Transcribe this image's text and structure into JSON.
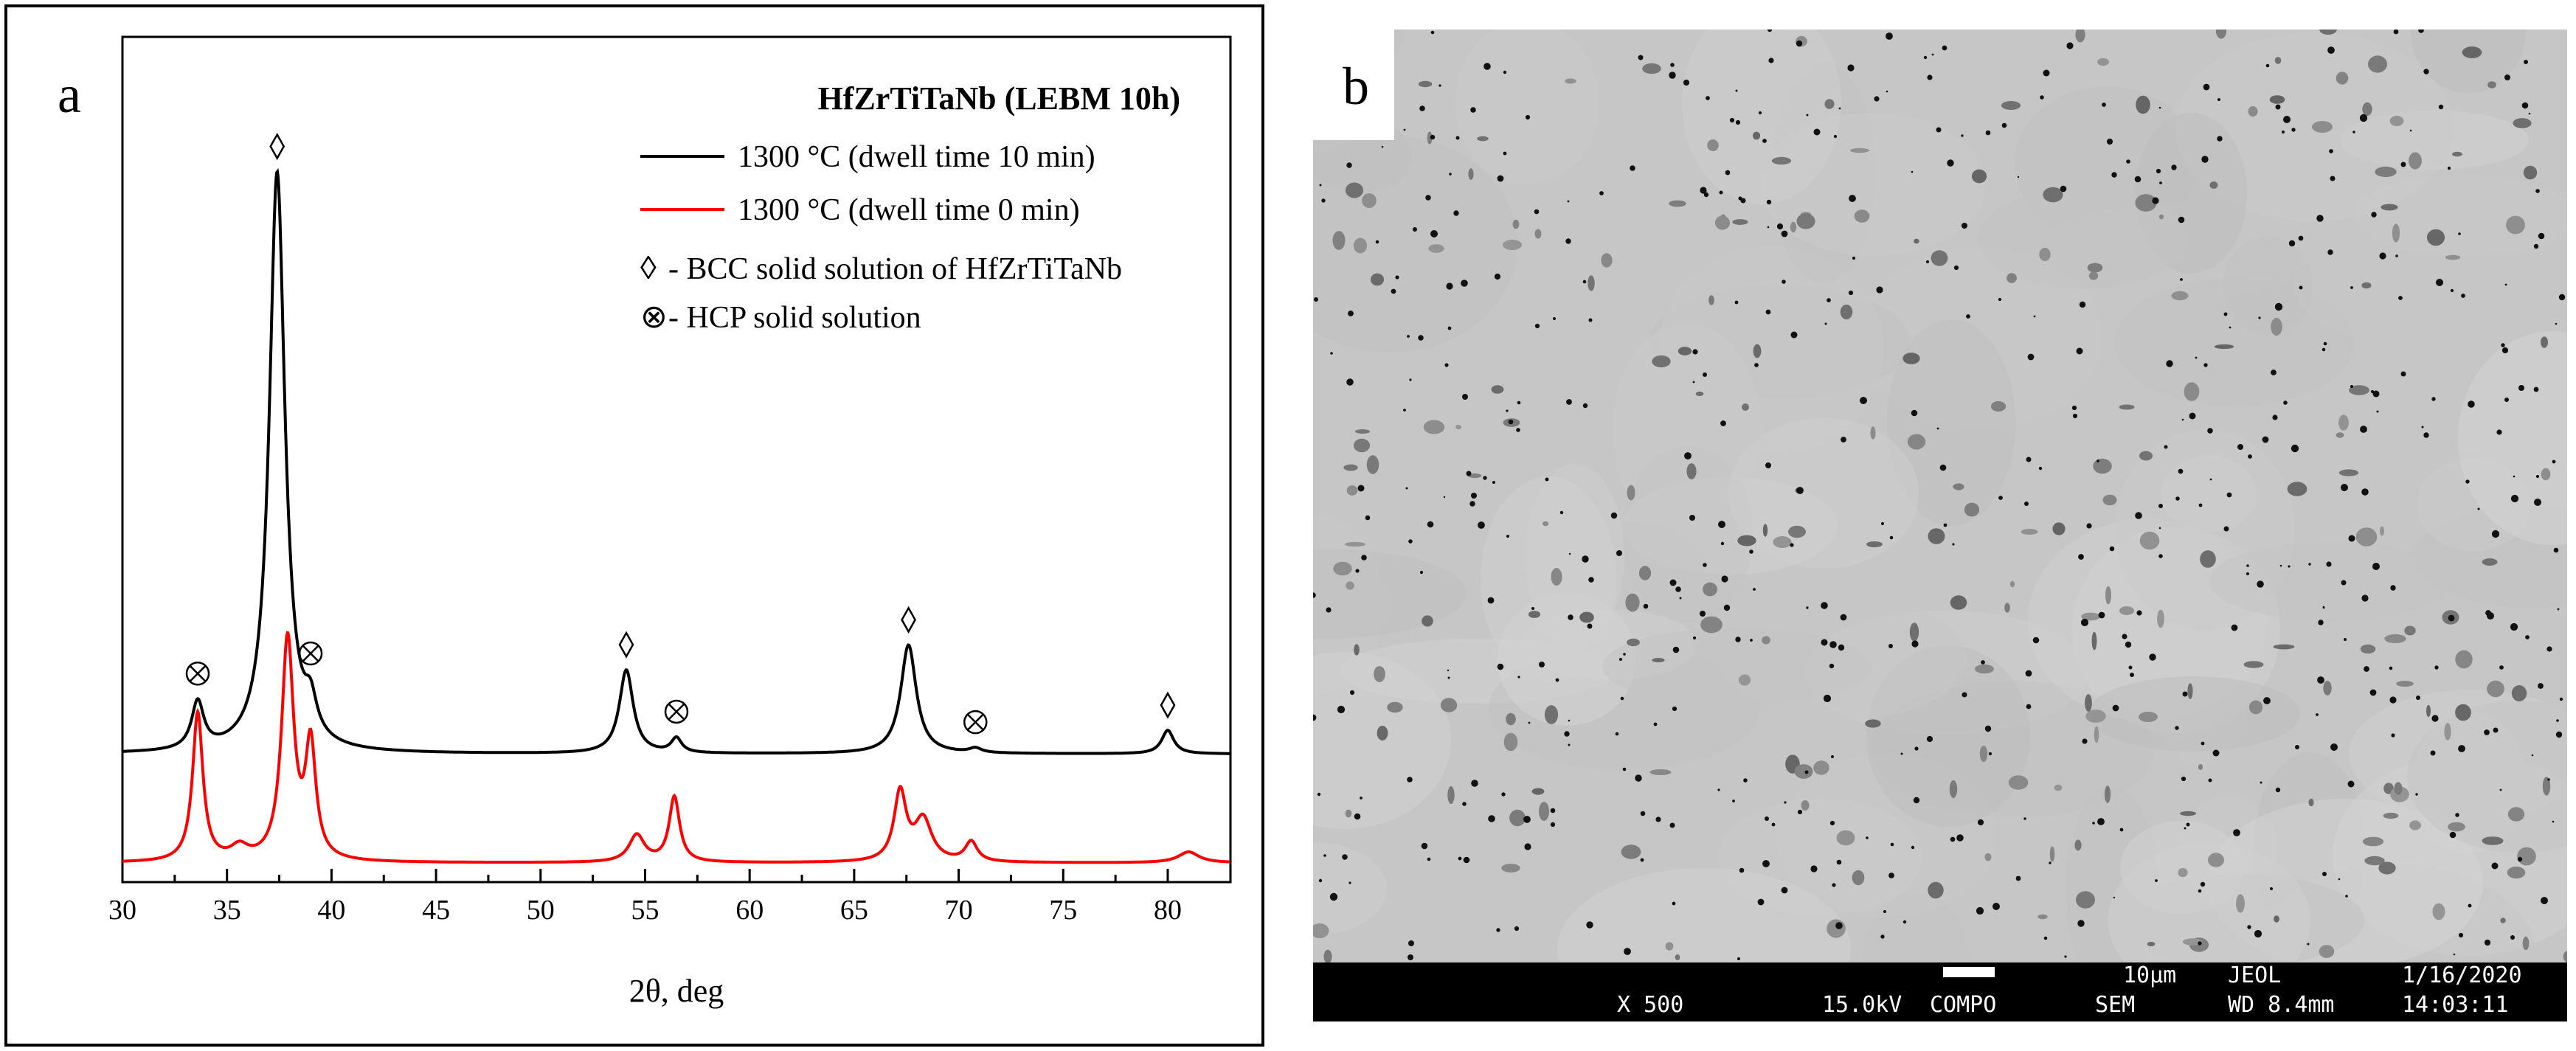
{
  "chart_data": {
    "type": "line",
    "panel_label": "a",
    "title": "HfZrTiTaNb (LEBM 10h)",
    "xlabel": "2θ, deg",
    "ylabel": "",
    "xlim": [
      30,
      83
    ],
    "xticks": [
      30,
      35,
      40,
      45,
      50,
      55,
      60,
      65,
      70,
      75,
      80
    ],
    "legend_position": "top-right",
    "grid": false,
    "series": [
      {
        "name": "1300 °C (dwell time 10 min)",
        "color": "#000000",
        "baseline": 0.6,
        "peaks": [
          {
            "x": 33.6,
            "h": 0.26,
            "w": 0.35
          },
          {
            "x": 37.4,
            "h": 3.2,
            "w": 0.45
          },
          {
            "x": 39.0,
            "h": 0.18,
            "w": 0.35
          },
          {
            "x": 54.1,
            "h": 0.46,
            "w": 0.4
          },
          {
            "x": 56.5,
            "h": 0.08,
            "w": 0.3
          },
          {
            "x": 67.6,
            "h": 0.6,
            "w": 0.45
          },
          {
            "x": 70.8,
            "h": 0.025,
            "w": 0.35
          },
          {
            "x": 80.0,
            "h": 0.13,
            "w": 0.35
          }
        ]
      },
      {
        "name": "1300 °C (dwell time 0 min)",
        "color": "#ff0000",
        "baseline": 0.0,
        "peaks": [
          {
            "x": 33.6,
            "h": 0.82,
            "w": 0.3
          },
          {
            "x": 35.6,
            "h": 0.07,
            "w": 0.5
          },
          {
            "x": 37.9,
            "h": 1.22,
            "w": 0.35
          },
          {
            "x": 39.0,
            "h": 0.62,
            "w": 0.3
          },
          {
            "x": 54.6,
            "h": 0.15,
            "w": 0.45
          },
          {
            "x": 56.4,
            "h": 0.36,
            "w": 0.3
          },
          {
            "x": 67.2,
            "h": 0.38,
            "w": 0.35
          },
          {
            "x": 68.3,
            "h": 0.23,
            "w": 0.5
          },
          {
            "x": 70.6,
            "h": 0.11,
            "w": 0.35
          },
          {
            "x": 81.0,
            "h": 0.06,
            "w": 0.6
          }
        ]
      }
    ],
    "markers": [
      {
        "type": "diamond",
        "x": 37.4
      },
      {
        "type": "diamond",
        "x": 54.1
      },
      {
        "type": "diamond",
        "x": 67.6
      },
      {
        "type": "diamond",
        "x": 80.0
      },
      {
        "type": "otimes",
        "x": 33.6
      },
      {
        "type": "otimes",
        "x": 39.0
      },
      {
        "type": "otimes",
        "x": 56.5
      },
      {
        "type": "otimes",
        "x": 70.8
      }
    ],
    "marker_legend": [
      {
        "symbol": "◊",
        "label": "- BCC solid solution of HfZrTiTaNb"
      },
      {
        "symbol": "⊗",
        "label": "- HCP solid solution"
      }
    ]
  },
  "sem": {
    "panel_label": "b",
    "scale": "10µm",
    "maker": "JEOL",
    "date": "1/16/2020",
    "magnification": "X 500",
    "voltage": "15.0kV",
    "mode": "COMPO",
    "detector": "SEM",
    "working_distance": "WD 8.4mm",
    "time": "14:03:11"
  }
}
